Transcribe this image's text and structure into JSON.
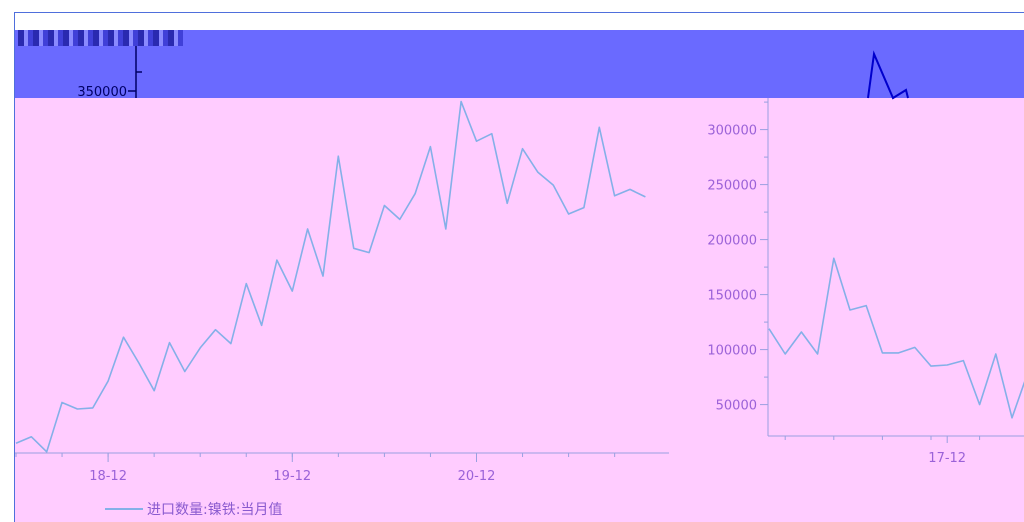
{
  "colors": {
    "series_line": "#84b0e8",
    "axis_text": "#9b62d8",
    "axis_line": "#9aa0e0",
    "plot_bg": "#ffccff",
    "band_bg": "#6a6aff",
    "inset_line": "#0000cc"
  },
  "chart_data": [
    {
      "type": "line",
      "title": "",
      "xlabel": "",
      "ylabel": "",
      "x_tick_labels": [
        "18-12",
        "19-12",
        "20-12"
      ],
      "y_tick_labels": [
        "350000"
      ],
      "legend": {
        "position": "bottom-left",
        "entries": [
          "进口数量:镍铁:当月值"
        ]
      },
      "series": [
        {
          "name": "进口数量:镍铁:当月值",
          "values": [
            56000,
            62000,
            48000,
            94000,
            88000,
            89000,
            114000,
            155000,
            131000,
            105000,
            150000,
            123000,
            145000,
            162000,
            149000,
            205000,
            166000,
            227000,
            198000,
            256000,
            212000,
            324000,
            238000,
            234000,
            278000,
            265000,
            289000,
            333000,
            256000,
            375000,
            338000,
            345000,
            280000,
            331000,
            309000,
            297000,
            270000,
            276000,
            351000,
            287000,
            293000,
            286000
          ]
        }
      ]
    },
    {
      "type": "line",
      "title": "",
      "xlabel": "",
      "ylabel": "",
      "x_tick_labels": [
        "17-12"
      ],
      "y_tick_labels": [
        "50000",
        "100000",
        "150000",
        "200000",
        "250000",
        "300000"
      ],
      "ylim": [
        20000,
        320000
      ],
      "grid": false,
      "series": [
        {
          "values": [
            119000,
            96000,
            116000,
            96000,
            183000,
            136000,
            140000,
            97000,
            97000,
            102000,
            85000,
            86000,
            90000,
            50000,
            96000,
            38000,
            80000
          ]
        }
      ]
    }
  ]
}
